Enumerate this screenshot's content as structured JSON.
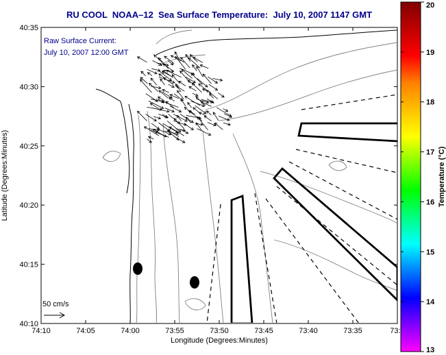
{
  "title": "RU COOL  NOAA–12  Sea Surface Temperature:  July 10, 2007 1147 GMT",
  "annotation": {
    "line1": "Raw Surface Current:",
    "line2": "July 10, 2007 12:00 GMT"
  },
  "axes": {
    "xlabel": "Longitude (Degrees:Minutes)",
    "ylabel": "Latitude (Degrees:Minutes)",
    "x_ticks": [
      "74:10",
      "74:05",
      "74:00",
      "73:55",
      "73:50",
      "73:45",
      "73:40",
      "73:35",
      "73:3"
    ],
    "y_ticks": [
      "40:35",
      "40:30",
      "40:25",
      "40:20",
      "40:15",
      "40:10"
    ]
  },
  "scale_arrow_label": "50 cm/s",
  "colorbar": {
    "label": "Temperature (°C)",
    "ticks": [
      "20",
      "19",
      "18",
      "17",
      "16",
      "15",
      "14",
      "13"
    ],
    "min": 13,
    "max": 20,
    "colors": [
      "#ff00ff",
      "#8000ff",
      "#0000ff",
      "#0080ff",
      "#00ffff",
      "#00ff80",
      "#00ff00",
      "#80ff00",
      "#ffff00",
      "#ffc000",
      "#ff8000",
      "#ff0000",
      "#c00000",
      "#800000"
    ]
  },
  "legend": {}
}
